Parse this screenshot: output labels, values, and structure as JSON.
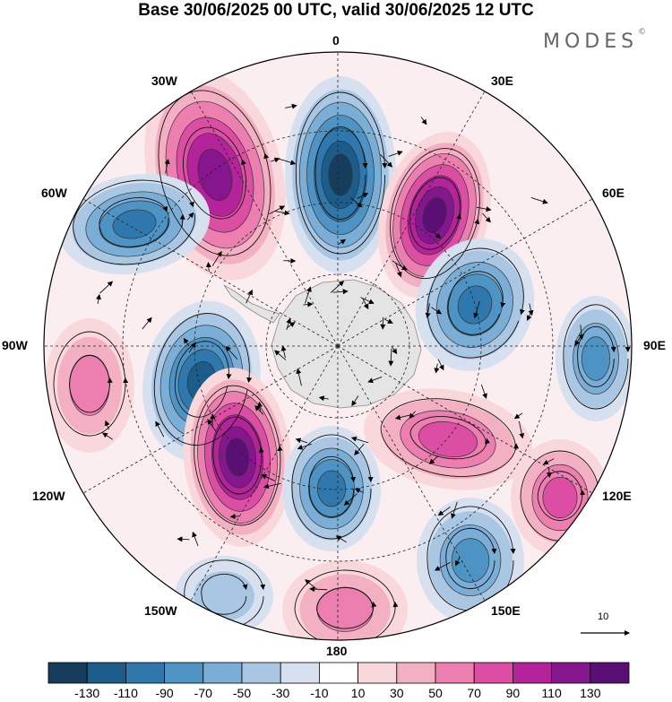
{
  "title": "Base 30/06/2025 00 UTC, valid 30/06/2025 12 UTC",
  "brand": "MODES",
  "brand_mark": "©",
  "longitude_labels": {
    "n0": "0",
    "n30e": "30E",
    "n60e": "60E",
    "n90e": "90E",
    "n120e": "120E",
    "n150e": "150E",
    "n180": "180",
    "n150w": "150W",
    "n120w": "120W",
    "n90w": "90W",
    "n60w": "60W",
    "n30w": "30W"
  },
  "reference_vector_label": "10",
  "colorbar": {
    "ticks": [
      "-130",
      "-110",
      "-90",
      "-70",
      "-50",
      "-30",
      "-10",
      "10",
      "30",
      "50",
      "70",
      "90",
      "110",
      "130"
    ],
    "colors": [
      "#163d5c",
      "#1b5c8a",
      "#2f78ad",
      "#4d93c4",
      "#7aaed6",
      "#a9c6e3",
      "#d6e0ef",
      "#ffffff",
      "#f9d8dc",
      "#f3b0c3",
      "#ec7fb0",
      "#dc4ea4",
      "#b5239a",
      "#86168e",
      "#5a0f74"
    ]
  },
  "colors": {
    "land": "#e4e4e4",
    "neutral": "#ffffff"
  }
}
